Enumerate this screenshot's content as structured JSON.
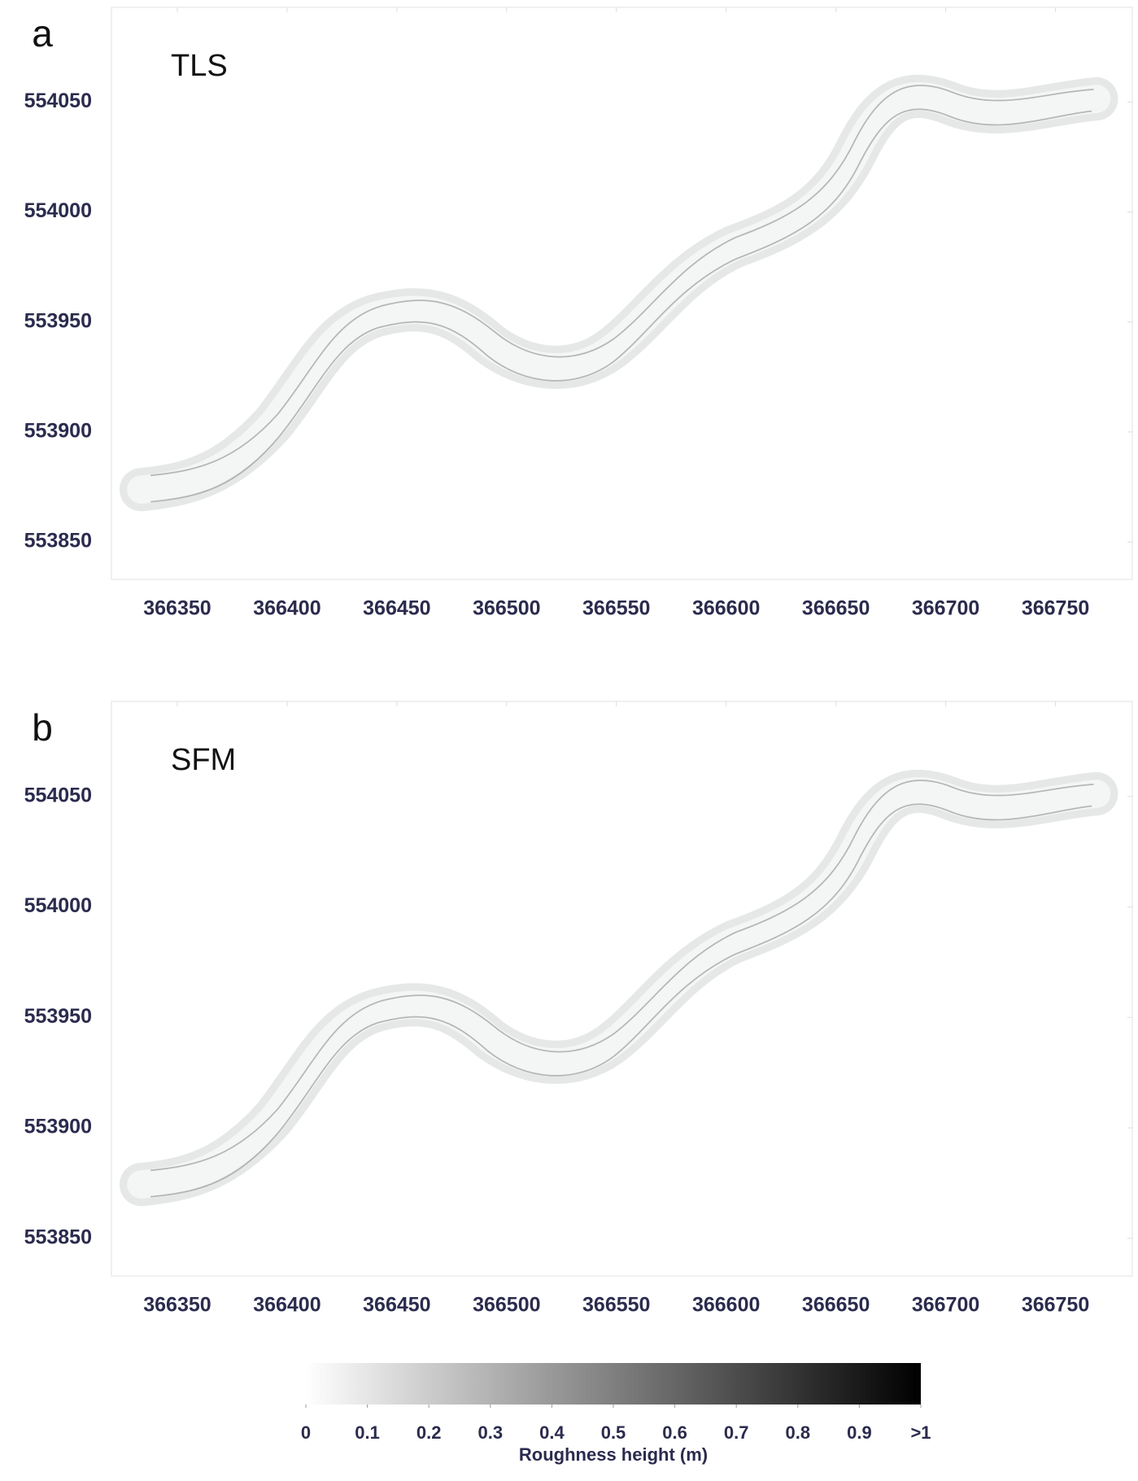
{
  "chart_data": [
    {
      "type": "map",
      "panel_label": "a",
      "title": "TLS",
      "xlim": [
        366320,
        366785
      ],
      "ylim": [
        553833,
        554093
      ],
      "xticks": [
        366350,
        366400,
        366450,
        366500,
        366550,
        366600,
        366650,
        366700,
        366750
      ],
      "yticks": [
        553850,
        553900,
        553950,
        554000,
        554050
      ]
    },
    {
      "type": "map",
      "panel_label": "b",
      "title": "SFM",
      "xlim": [
        366320,
        366785
      ],
      "ylim": [
        553833,
        554093
      ],
      "xticks": [
        366350,
        366400,
        366450,
        366500,
        366550,
        366600,
        366650,
        366700,
        366750
      ],
      "yticks": [
        553850,
        553900,
        553950,
        554000,
        554050
      ]
    },
    {
      "type": "colorbar",
      "label": "Roughness height (m)",
      "lim": [
        0,
        1
      ],
      "colors": [
        "#ffffff",
        "#000000"
      ],
      "ticks": [
        0,
        0.1,
        0.2,
        0.3,
        0.4,
        0.5,
        0.6,
        0.7,
        0.8,
        0.9,
        {
          "value": 1,
          "label": ">1"
        }
      ]
    }
  ]
}
